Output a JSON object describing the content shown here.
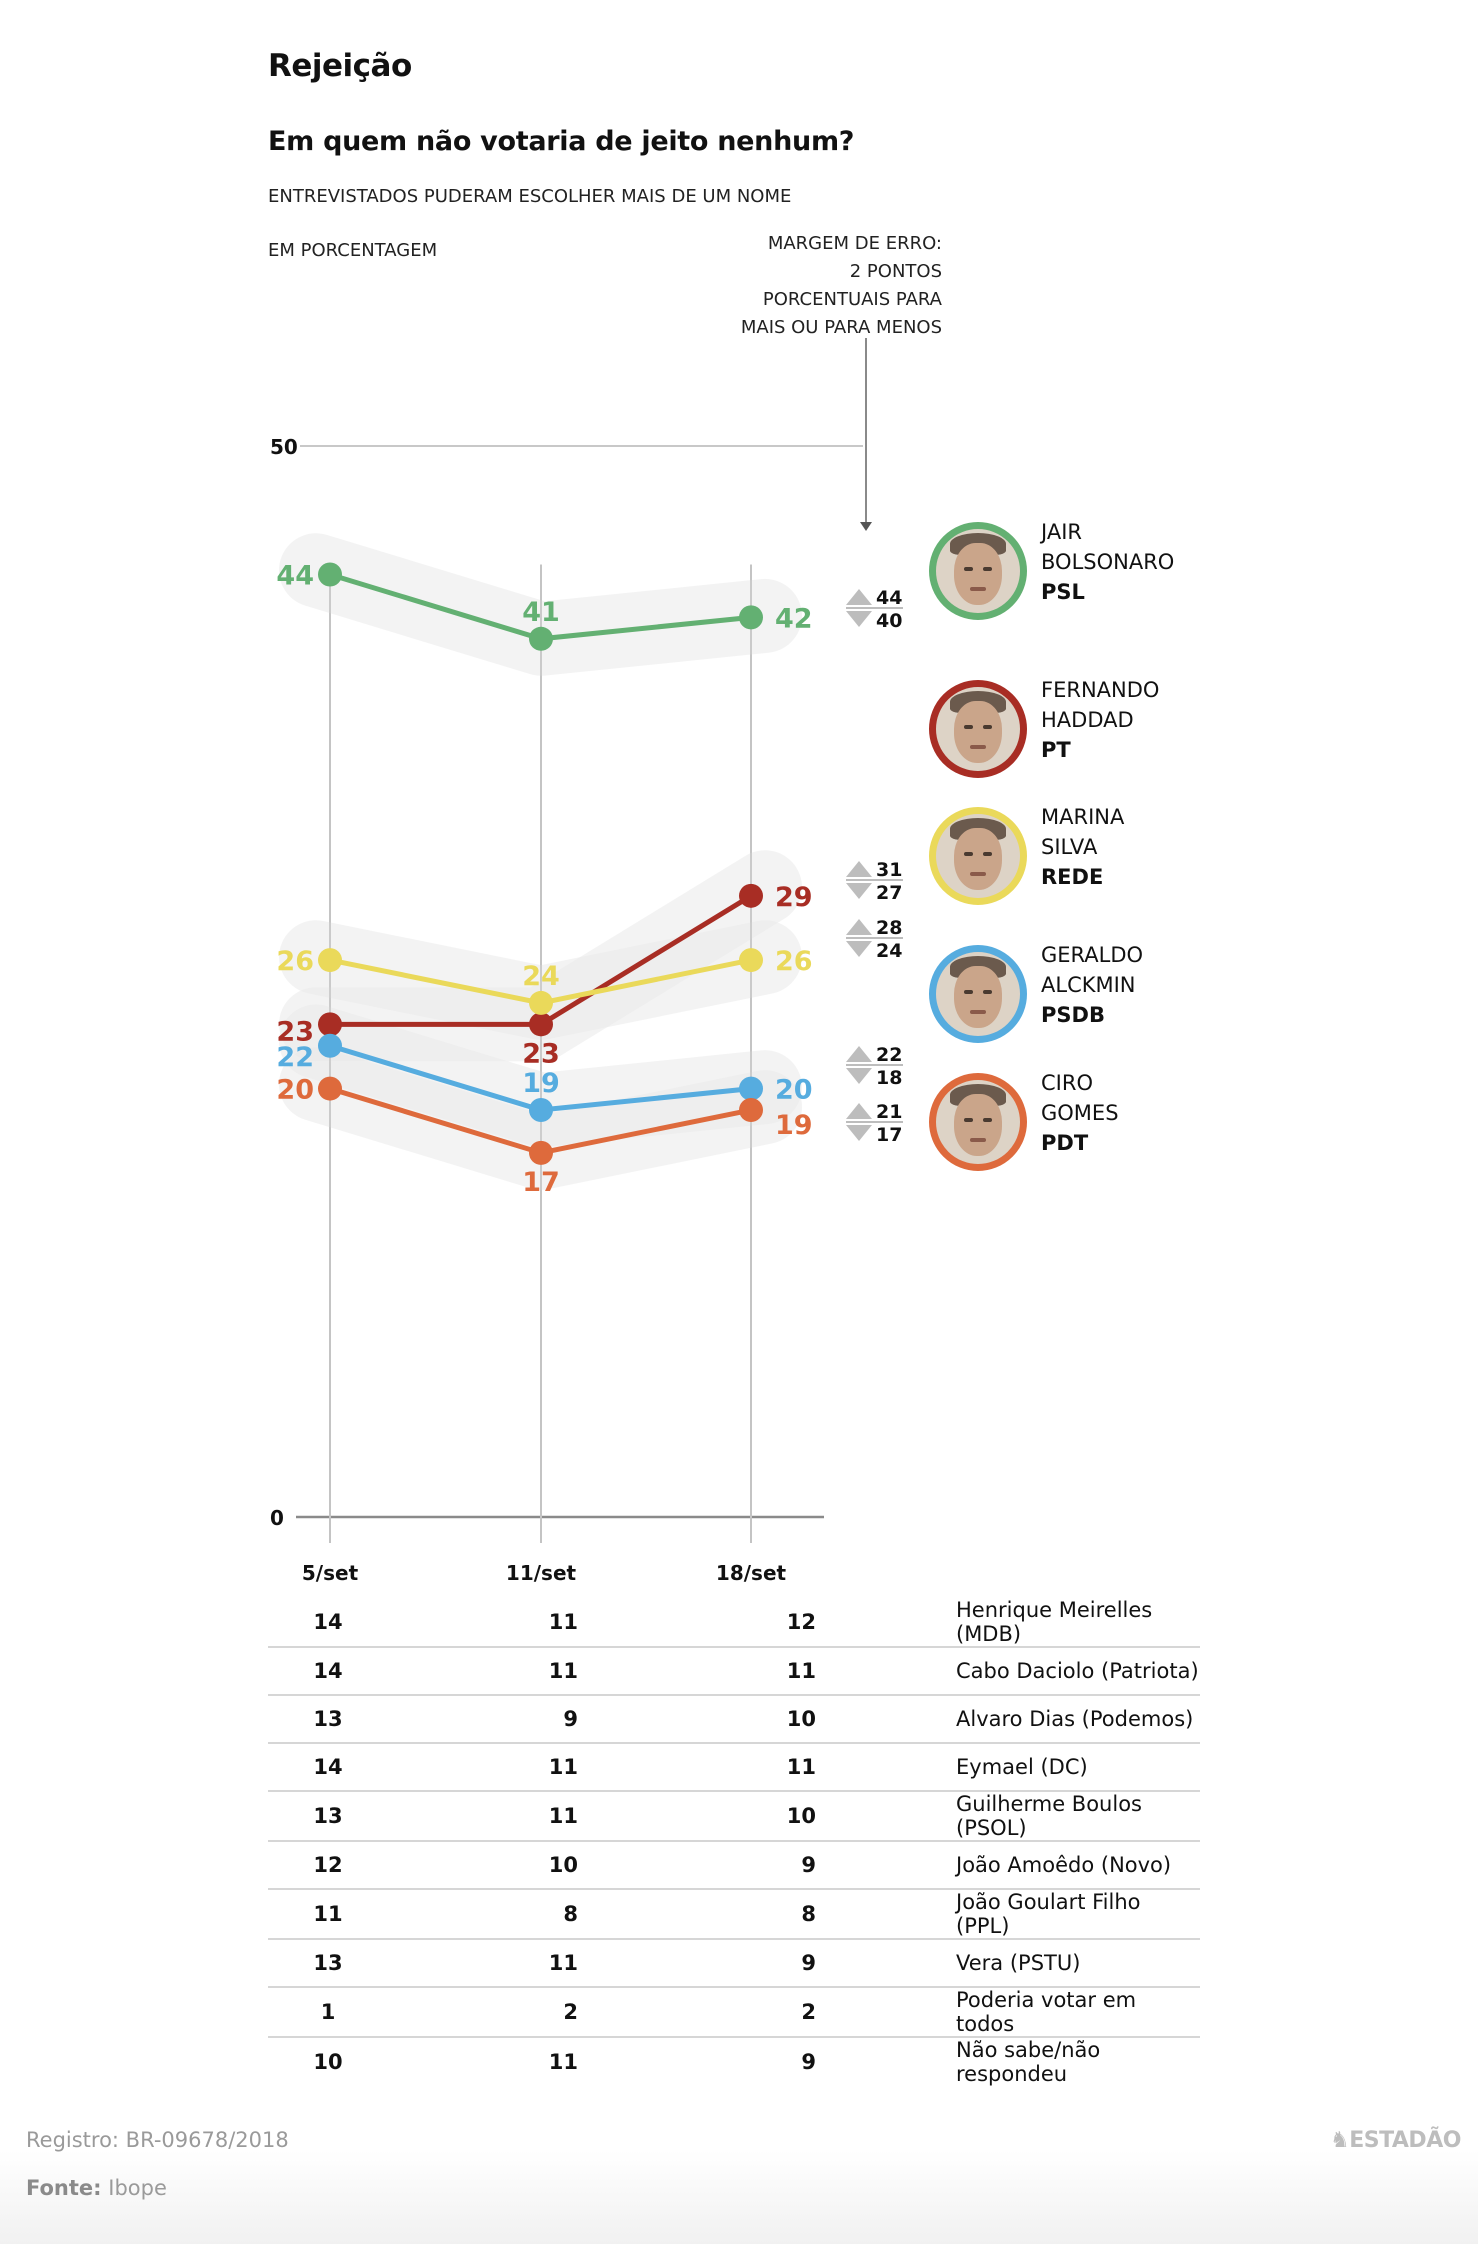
{
  "header": {
    "title": "Rejeição",
    "subtitle": "Em quem não votaria de jeito nenhum?",
    "note_multiple": "ENTREVISTADOS PUDERAM ESCOLHER MAIS DE UM NOME",
    "note_unit": "EM PORCENTAGEM",
    "margin_note": [
      "MARGEM DE ERRO:",
      "2 PONTOS",
      "PORCENTUAIS PARA",
      "MAIS OU PARA MENOS"
    ]
  },
  "chart_data": {
    "type": "line",
    "title": "Em quem não votaria de jeito nenhum?",
    "xlabel": "",
    "ylabel": "EM PORCENTAGEM",
    "x": [
      "5/set",
      "11/set",
      "18/set"
    ],
    "ylim": [
      0,
      50
    ],
    "yticks": [
      "0",
      "50"
    ],
    "margin_of_error": 2,
    "series": [
      {
        "name": "Jair Bolsonaro",
        "party": "PSL",
        "color": "#63b072",
        "values": [
          44,
          41,
          42
        ],
        "range_latest": {
          "high": 44,
          "low": 40
        },
        "mid_label": "above"
      },
      {
        "name": "Fernando Haddad",
        "party": "PT",
        "color": "#a82d24",
        "values": [
          23,
          23,
          29
        ],
        "range_latest": {
          "high": 31,
          "low": 27
        },
        "mid_label": "below"
      },
      {
        "name": "Marina Silva",
        "party": "REDE",
        "color": "#ead95a",
        "values": [
          26,
          24,
          26
        ],
        "range_latest": {
          "high": 28,
          "low": 24
        },
        "mid_label": "above"
      },
      {
        "name": "Geraldo Alckmin",
        "party": "PSDB",
        "color": "#56acdf",
        "values": [
          22,
          19,
          20
        ],
        "range_latest": {
          "high": 22,
          "low": 18
        },
        "mid_label": "above"
      },
      {
        "name": "Ciro Gomes",
        "party": "PDT",
        "color": "#de6a3c",
        "values": [
          20,
          17,
          19
        ],
        "range_latest": {
          "high": 21,
          "low": 17
        },
        "mid_label": "below"
      }
    ]
  },
  "candidates": [
    {
      "first": "JAIR",
      "last": "BOLSONARO",
      "party": "PSL",
      "color": "#63b072",
      "avatar_icon": "candidate-photo"
    },
    {
      "first": "FERNANDO",
      "last": "HADDAD",
      "party": "PT",
      "color": "#a82d24",
      "avatar_icon": "candidate-photo"
    },
    {
      "first": "MARINA",
      "last": "SILVA",
      "party": "REDE",
      "color": "#ead95a",
      "avatar_icon": "candidate-photo"
    },
    {
      "first": "GERALDO",
      "last": "ALCKMIN",
      "party": "PSDB",
      "color": "#56acdf",
      "avatar_icon": "candidate-photo"
    },
    {
      "first": "CIRO",
      "last": "GOMES",
      "party": "PDT",
      "color": "#de6a3c",
      "avatar_icon": "candidate-photo"
    }
  ],
  "others_table": {
    "columns": [
      "5/set",
      "11/set",
      "18/set",
      ""
    ],
    "rows": [
      {
        "v": [
          "14",
          "11",
          "12"
        ],
        "name": "Henrique Meirelles (MDB)"
      },
      {
        "v": [
          "14",
          "11",
          "11"
        ],
        "name": "Cabo Daciolo (Patriota)"
      },
      {
        "v": [
          "13",
          "9",
          "10"
        ],
        "name": "Alvaro Dias (Podemos)"
      },
      {
        "v": [
          "14",
          "11",
          "11"
        ],
        "name": "Eymael (DC)"
      },
      {
        "v": [
          "13",
          "11",
          "10"
        ],
        "name": "Guilherme Boulos (PSOL)"
      },
      {
        "v": [
          "12",
          "10",
          "9"
        ],
        "name": "João Amoêdo (Novo)"
      },
      {
        "v": [
          "11",
          "8",
          "8"
        ],
        "name": "João Goulart Filho (PPL)"
      },
      {
        "v": [
          "13",
          "11",
          "9"
        ],
        "name": "Vera (PSTU)"
      },
      {
        "v": [
          "1",
          "2",
          "2"
        ],
        "name": "Poderia votar em todos"
      },
      {
        "v": [
          "10",
          "11",
          "9"
        ],
        "name": "Não sabe/não respondeu"
      }
    ]
  },
  "footer": {
    "registro": "Registro: BR-09678/2018",
    "fonte_label": "Fonte:",
    "fonte_value": "Ibope",
    "logo": "ESTADÃO",
    "logo_icon": "estadao-horse-icon"
  }
}
